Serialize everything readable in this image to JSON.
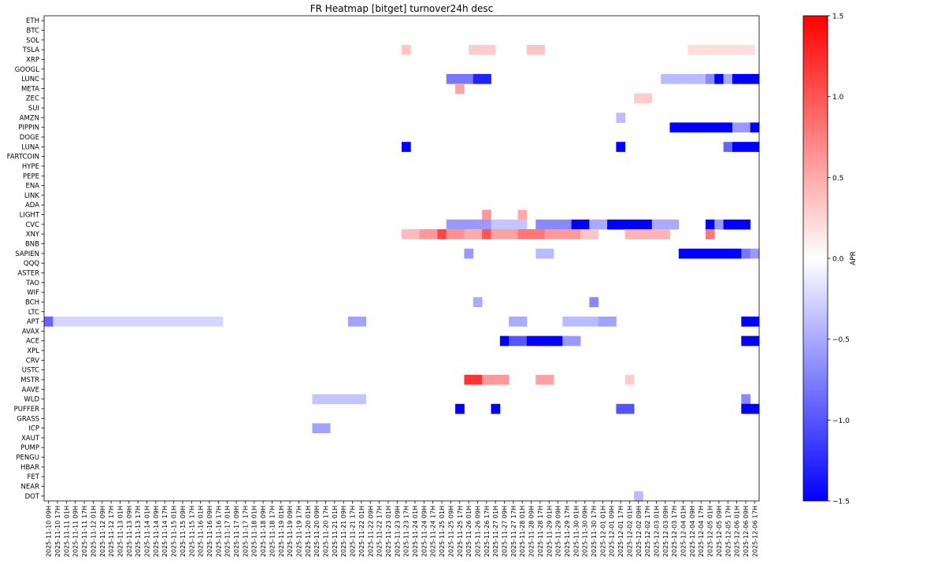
{
  "chart_data": {
    "type": "heatmap",
    "title": "FR Heatmap [bitget] turnover24h desc",
    "colorbar_label": "APR",
    "colorbar_ticks": [
      "1.5",
      "1.0",
      "0.5",
      "0.0",
      "−0.5",
      "−1.0",
      "−1.5"
    ],
    "value_range": [
      -1.5,
      1.5
    ],
    "colormap": {
      "low": "#0000ff",
      "mid": "#ffffff",
      "high": "#ff0000"
    },
    "rows": [
      "ETH",
      "BTC",
      "SOL",
      "TSLA",
      "XRP",
      "GOOGL",
      "LUNC",
      "META",
      "ZEC",
      "SUI",
      "AMZN",
      "PIPPIN",
      "DOGE",
      "LUNA",
      "FARTCOIN",
      "HYPE",
      "PEPE",
      "ENA",
      "LINK",
      "ADA",
      "LIGHT",
      "CVC",
      "XNY",
      "BNB",
      "SAPIEN",
      "QQQ",
      "ASTER",
      "TAO",
      "WIF",
      "BCH",
      "LTC",
      "APT",
      "AVAX",
      "ACE",
      "XPL",
      "CRV",
      "USTC",
      "MSTR",
      "AAVE",
      "WLD",
      "PUFFER",
      "GRASS",
      "ICP",
      "XAUT",
      "PUMP",
      "PENGU",
      "HBAR",
      "FET",
      "NEAR",
      "DOT"
    ],
    "x_labels": [
      "2025-11-10 09H",
      "2025-11-10 17H",
      "2025-11-11 01H",
      "2025-11-11 09H",
      "2025-11-11 17H",
      "2025-11-12 01H",
      "2025-11-12 09H",
      "2025-11-12 17H",
      "2025-11-13 01H",
      "2025-11-13 09H",
      "2025-11-13 17H",
      "2025-11-14 01H",
      "2025-11-14 09H",
      "2025-11-14 17H",
      "2025-11-15 01H",
      "2025-11-15 09H",
      "2025-11-15 17H",
      "2025-11-16 01H",
      "2025-11-16 09H",
      "2025-11-16 17H",
      "2025-11-17 01H",
      "2025-11-17 09H",
      "2025-11-17 17H",
      "2025-11-18 01H",
      "2025-11-18 09H",
      "2025-11-18 17H",
      "2025-11-19 01H",
      "2025-11-19 09H",
      "2025-11-19 17H",
      "2025-11-20 01H",
      "2025-11-20 09H",
      "2025-11-20 17H",
      "2025-11-21 01H",
      "2025-11-21 09H",
      "2025-11-21 17H",
      "2025-11-22 01H",
      "2025-11-22 09H",
      "2025-11-22 17H",
      "2025-11-23 01H",
      "2025-11-23 09H",
      "2025-11-23 17H",
      "2025-11-24 01H",
      "2025-11-24 09H",
      "2025-11-24 17H",
      "2025-11-25 01H",
      "2025-11-25 09H",
      "2025-11-25 17H",
      "2025-11-26 01H",
      "2025-11-26 09H",
      "2025-11-26 17H",
      "2025-11-27 01H",
      "2025-11-27 09H",
      "2025-11-27 17H",
      "2025-11-28 01H",
      "2025-11-28 09H",
      "2025-11-28 17H",
      "2025-11-29 01H",
      "2025-11-29 09H",
      "2025-11-29 17H",
      "2025-11-30 01H",
      "2025-11-30 09H",
      "2025-11-30 17H",
      "2025-12-01 01H",
      "2025-12-01 09H",
      "2025-12-01 17H",
      "2025-12-02 01H",
      "2025-12-02 09H",
      "2025-12-02 17H",
      "2025-12-03 01H",
      "2025-12-03 09H",
      "2025-12-03 17H",
      "2025-12-04 01H",
      "2025-12-04 09H",
      "2025-12-04 17H",
      "2025-12-05 01H",
      "2025-12-05 09H",
      "2025-12-05 17H",
      "2025-12-06 01H",
      "2025-12-06 09H",
      "2025-12-06 17H"
    ],
    "cells_per_label": 2,
    "total_columns": 160,
    "highlights": [
      {
        "row": "TSLA",
        "from": 80,
        "to": 82,
        "value": 0.35
      },
      {
        "row": "TSLA",
        "from": 95,
        "to": 101,
        "value": 0.3
      },
      {
        "row": "TSLA",
        "from": 108,
        "to": 112,
        "value": 0.35
      },
      {
        "row": "TSLA",
        "from": 144,
        "to": 159,
        "value": 0.2
      },
      {
        "row": "LUNC",
        "from": 90,
        "to": 96,
        "value": -0.8
      },
      {
        "row": "LUNC",
        "from": 96,
        "to": 100,
        "value": -1.3
      },
      {
        "row": "LUNC",
        "from": 138,
        "to": 148,
        "value": -0.4
      },
      {
        "row": "LUNC",
        "from": 148,
        "to": 150,
        "value": -0.7
      },
      {
        "row": "LUNC",
        "from": 150,
        "to": 152,
        "value": -1.5
      },
      {
        "row": "LUNC",
        "from": 152,
        "to": 154,
        "value": -0.5
      },
      {
        "row": "LUNC",
        "from": 154,
        "to": 160,
        "value": -1.5
      },
      {
        "row": "META",
        "from": 92,
        "to": 94,
        "value": 0.55
      },
      {
        "row": "ZEC",
        "from": 132,
        "to": 136,
        "value": 0.3
      },
      {
        "row": "AMZN",
        "from": 128,
        "to": 130,
        "value": -0.4
      },
      {
        "row": "PIPPIN",
        "from": 140,
        "to": 154,
        "value": -1.5
      },
      {
        "row": "PIPPIN",
        "from": 154,
        "to": 158,
        "value": -0.6
      },
      {
        "row": "PIPPIN",
        "from": 158,
        "to": 160,
        "value": -1.5
      },
      {
        "row": "LUNA",
        "from": 80,
        "to": 82,
        "value": -1.5
      },
      {
        "row": "LUNA",
        "from": 128,
        "to": 130,
        "value": -1.5
      },
      {
        "row": "LUNA",
        "from": 152,
        "to": 154,
        "value": -0.9
      },
      {
        "row": "LUNA",
        "from": 154,
        "to": 160,
        "value": -1.5
      },
      {
        "row": "LIGHT",
        "from": 98,
        "to": 100,
        "value": 0.6
      },
      {
        "row": "LIGHT",
        "from": 106,
        "to": 108,
        "value": 0.5
      },
      {
        "row": "CVC",
        "from": 90,
        "to": 100,
        "value": -0.6
      },
      {
        "row": "CVC",
        "from": 100,
        "to": 108,
        "value": -0.35
      },
      {
        "row": "CVC",
        "from": 110,
        "to": 118,
        "value": -0.7
      },
      {
        "row": "CVC",
        "from": 118,
        "to": 122,
        "value": -1.5
      },
      {
        "row": "CVC",
        "from": 122,
        "to": 126,
        "value": -0.5
      },
      {
        "row": "CVC",
        "from": 126,
        "to": 136,
        "value": -1.5
      },
      {
        "row": "CVC",
        "from": 136,
        "to": 142,
        "value": -0.5
      },
      {
        "row": "CVC",
        "from": 148,
        "to": 150,
        "value": -1.5
      },
      {
        "row": "CVC",
        "from": 150,
        "to": 152,
        "value": -0.6
      },
      {
        "row": "CVC",
        "from": 152,
        "to": 158,
        "value": -1.5
      },
      {
        "row": "XNY",
        "from": 80,
        "to": 84,
        "value": 0.4
      },
      {
        "row": "XNY",
        "from": 84,
        "to": 88,
        "value": 0.6
      },
      {
        "row": "XNY",
        "from": 88,
        "to": 90,
        "value": 1.1
      },
      {
        "row": "XNY",
        "from": 90,
        "to": 94,
        "value": 0.65
      },
      {
        "row": "XNY",
        "from": 94,
        "to": 98,
        "value": 0.5
      },
      {
        "row": "XNY",
        "from": 98,
        "to": 100,
        "value": 1.0
      },
      {
        "row": "XNY",
        "from": 100,
        "to": 106,
        "value": 0.55
      },
      {
        "row": "XNY",
        "from": 106,
        "to": 112,
        "value": 0.8
      },
      {
        "row": "XNY",
        "from": 112,
        "to": 120,
        "value": 0.6
      },
      {
        "row": "XNY",
        "from": 120,
        "to": 124,
        "value": 0.35
      },
      {
        "row": "XNY",
        "from": 130,
        "to": 140,
        "value": 0.45
      },
      {
        "row": "XNY",
        "from": 148,
        "to": 150,
        "value": 0.8
      },
      {
        "row": "SAPIEN",
        "from": 94,
        "to": 96,
        "value": -0.6
      },
      {
        "row": "SAPIEN",
        "from": 110,
        "to": 114,
        "value": -0.4
      },
      {
        "row": "SAPIEN",
        "from": 142,
        "to": 156,
        "value": -1.5
      },
      {
        "row": "SAPIEN",
        "from": 156,
        "to": 158,
        "value": -0.8
      },
      {
        "row": "SAPIEN",
        "from": 158,
        "to": 160,
        "value": -0.6
      },
      {
        "row": "BCH",
        "from": 96,
        "to": 98,
        "value": -0.5
      },
      {
        "row": "BCH",
        "from": 122,
        "to": 124,
        "value": -0.7
      },
      {
        "row": "APT",
        "from": 0,
        "to": 2,
        "value": -0.9
      },
      {
        "row": "APT",
        "from": 2,
        "to": 40,
        "value": -0.25
      },
      {
        "row": "APT",
        "from": 68,
        "to": 72,
        "value": -0.55
      },
      {
        "row": "APT",
        "from": 104,
        "to": 108,
        "value": -0.5
      },
      {
        "row": "APT",
        "from": 116,
        "to": 124,
        "value": -0.4
      },
      {
        "row": "APT",
        "from": 124,
        "to": 128,
        "value": -0.55
      },
      {
        "row": "APT",
        "from": 156,
        "to": 160,
        "value": -1.5
      },
      {
        "row": "ACE",
        "from": 102,
        "to": 104,
        "value": -1.5
      },
      {
        "row": "ACE",
        "from": 104,
        "to": 108,
        "value": -1.0
      },
      {
        "row": "ACE",
        "from": 108,
        "to": 116,
        "value": -1.5
      },
      {
        "row": "ACE",
        "from": 116,
        "to": 120,
        "value": -0.6
      },
      {
        "row": "ACE",
        "from": 156,
        "to": 160,
        "value": -1.5
      },
      {
        "row": "MSTR",
        "from": 94,
        "to": 98,
        "value": 1.2
      },
      {
        "row": "MSTR",
        "from": 98,
        "to": 104,
        "value": 0.6
      },
      {
        "row": "MSTR",
        "from": 110,
        "to": 114,
        "value": 0.55
      },
      {
        "row": "MSTR",
        "from": 130,
        "to": 132,
        "value": 0.3
      },
      {
        "row": "WLD",
        "from": 60,
        "to": 72,
        "value": -0.35
      },
      {
        "row": "WLD",
        "from": 156,
        "to": 158,
        "value": -0.7
      },
      {
        "row": "PUFFER",
        "from": 92,
        "to": 94,
        "value": -1.5
      },
      {
        "row": "PUFFER",
        "from": 100,
        "to": 102,
        "value": -1.5
      },
      {
        "row": "PUFFER",
        "from": 128,
        "to": 132,
        "value": -1.0
      },
      {
        "row": "PUFFER",
        "from": 156,
        "to": 160,
        "value": -1.5
      },
      {
        "row": "ICP",
        "from": 60,
        "to": 64,
        "value": -0.55
      },
      {
        "row": "DOT",
        "from": 132,
        "to": 134,
        "value": -0.4
      }
    ]
  }
}
